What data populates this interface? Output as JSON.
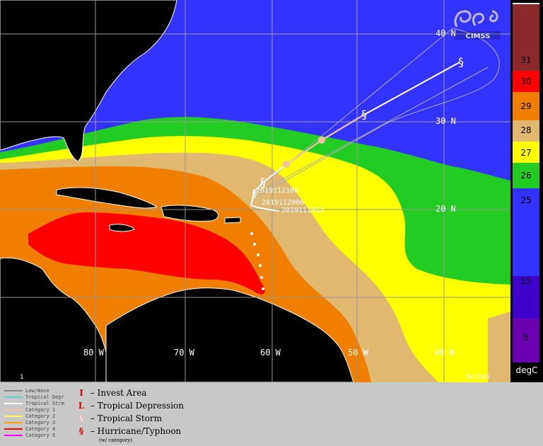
{
  "map": {
    "lat_labels": [
      "40 N",
      "30 N",
      "20 N"
    ],
    "lon_labels": [
      "80 W",
      "70 W",
      "60 W",
      "50 W",
      "40 W"
    ],
    "bottom_left_label": "1",
    "bottom_right_label": "McIDAS",
    "logo_text": "CIMSS",
    "track_dates": [
      "2019112100",
      "2019112006",
      "2019111912"
    ],
    "colors": {
      "cat_lt25": "#3333ff",
      "cat_25_26": "#22cc22",
      "cat_26_27": "#ffff00",
      "cat_27_28": "#e0b870",
      "cat_28_29": "#f07f00",
      "cat_29_30": "#ff0000",
      "cat_31": "#8b2a2a",
      "land": "#000000",
      "coast": "#ffffff",
      "grid": "#999999",
      "track": "#ffffff",
      "cone": "#aaaaaa"
    }
  },
  "colorbar": {
    "labels": [
      "31",
      "30",
      "29",
      "28",
      "27",
      "26",
      "25",
      "15",
      "5"
    ],
    "unit": "degC",
    "colors": [
      "#8b2a2a",
      "#ff0000",
      "#f07f00",
      "#e0b870",
      "#ffff00",
      "#22cc22",
      "#3333ff",
      "#4000cc",
      "#6a00b0"
    ]
  },
  "legend": {
    "line_items": [
      {
        "label": "Low/Wave",
        "color": "#888888"
      },
      {
        "label": "Tropical Depr",
        "color": "#66cccc"
      },
      {
        "label": "Tropical Strm",
        "color": "#ffffff"
      },
      {
        "label": "Category 1",
        "color": "#f0c0a0"
      },
      {
        "label": "Category 2",
        "color": "#ffff40"
      },
      {
        "label": "Category 3",
        "color": "#ffa000"
      },
      {
        "label": "Category 4",
        "color": "#ff0000"
      },
      {
        "label": "Category 5",
        "color": "#ff00ff"
      }
    ],
    "symbol_items": [
      {
        "symbol": "I",
        "label": "– Invest Area"
      },
      {
        "symbol": "L",
        "label": "– Tropical Depression"
      },
      {
        "symbol": "§",
        "label": "– Tropical Storm"
      },
      {
        "symbol": "§",
        "label": "– Hurricane/Typhoon"
      }
    ],
    "note": "(w/ category)"
  }
}
